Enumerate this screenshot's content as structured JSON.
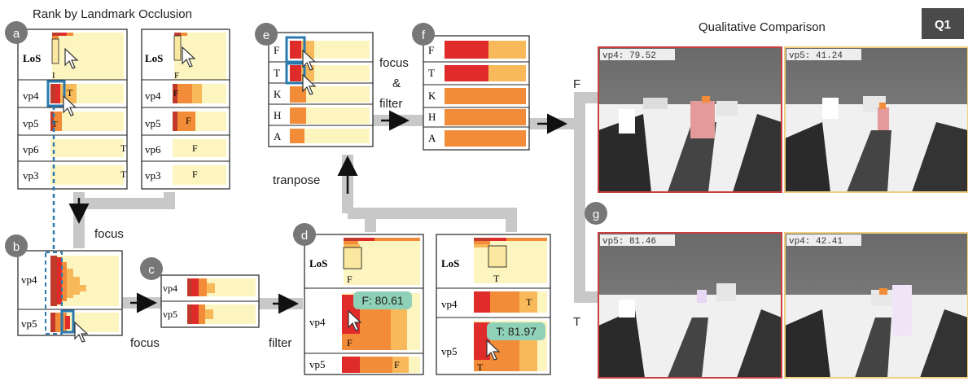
{
  "figure": {
    "title_rank": "Rank by Landmark Occlusion",
    "title_qual": "Qualitative Comparison",
    "badge": "Q1"
  },
  "panels": {
    "a": "a",
    "b": "b",
    "c": "c",
    "d": "d",
    "e": "e",
    "f": "f",
    "g": "g"
  },
  "flow": {
    "focus_top": "focus",
    "focus_bottom": "focus",
    "filter_bottom": "filter",
    "tranpose": "tranpose",
    "focus_and": "focus",
    "ampersand": "&",
    "filter_top": "filter",
    "branch_f": "F",
    "branch_t": "T"
  },
  "rows": {
    "los": "LoS",
    "vp4": "vp4",
    "vp5": "vp5",
    "vp6": "vp6",
    "vp3": "vp3",
    "F": "F",
    "T": "T",
    "K": "K",
    "H": "H",
    "A": "A"
  },
  "marks": {
    "t": "T",
    "f": "F",
    "i_small": "I"
  },
  "tooltips": {
    "f_value": "F: 80.61",
    "t_value": "T: 81.97"
  },
  "views": {
    "top_left": "vp4: 79.52",
    "top_right": "vp5: 41.24",
    "bot_left": "vp5: 81.46",
    "bot_right": "vp4: 42.41"
  },
  "colors": {
    "dark_red": "#c0392b",
    "red": "#e02b2b",
    "orange": "#f28c38",
    "light_orange": "#f7b95a",
    "pale_yellow": "#fdf5c0",
    "highlight_blue": "#2a7ab0",
    "tooltip_teal": "#8fd1b8",
    "arrow_gray": "#c8c8c8",
    "view_red_border": "#c94040",
    "view_yellow_border": "#f0d080"
  }
}
